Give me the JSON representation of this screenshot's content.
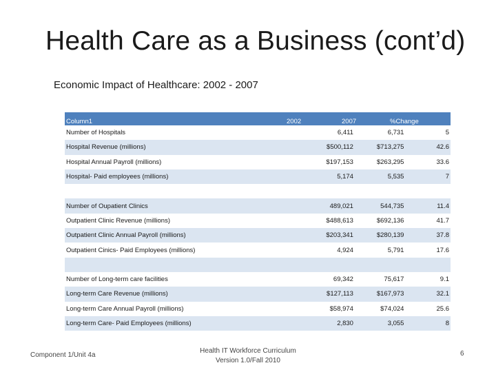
{
  "slide": {
    "title": "Health Care as a Business (cont’d)",
    "subtitle": "Economic Impact of Healthcare:  2002 - 2007"
  },
  "table": {
    "headers": {
      "label": "Column1",
      "y2002": "2002",
      "y2007": "2007",
      "pct": "%Change"
    },
    "rows": [
      {
        "label": "Number of Hospitals",
        "y2002": "6,411",
        "y2007": "6,731",
        "pct": "5"
      },
      {
        "label": "Hospital Revenue (millions)",
        "y2002": "$500,112",
        "y2007": "$713,275",
        "pct": "42.6"
      },
      {
        "label": "Hospital Annual Payroll (millions)",
        "y2002": "$197,153",
        "y2007": "$263,295",
        "pct": "33.6"
      },
      {
        "label": "Hospital- Paid employees (millions)",
        "y2002": "5,174",
        "y2007": "5,535",
        "pct": "7"
      },
      {
        "label": "",
        "y2002": "",
        "y2007": "",
        "pct": ""
      },
      {
        "label": "Number of Oupatient Clinics",
        "y2002": "489,021",
        "y2007": "544,735",
        "pct": "11.4"
      },
      {
        "label": "Outpatient Clinic Revenue (millions)",
        "y2002": "$488,613",
        "y2007": "$692,136",
        "pct": "41.7"
      },
      {
        "label": "Outpatient Clinic Annual Payroll (millions)",
        "y2002": "$203,341",
        "y2007": "$280,139",
        "pct": "37.8"
      },
      {
        "label": "Outpatient Cinics- Paid Employees (millions)",
        "y2002": "4,924",
        "y2007": "5,791",
        "pct": "17.6"
      },
      {
        "label": "",
        "y2002": "",
        "y2007": "",
        "pct": ""
      },
      {
        "label": "Number of Long-term care facilities",
        "y2002": "69,342",
        "y2007": "75,617",
        "pct": "9.1"
      },
      {
        "label": "Long-term Care Revenue (millions)",
        "y2002": "$127,113",
        "y2007": "$167,973",
        "pct": "32.1"
      },
      {
        "label": "Long-term Care Annual Payroll (millions)",
        "y2002": "$58,974",
        "y2007": "$74,024",
        "pct": "25.6"
      },
      {
        "label": "Long-term Care- Paid Employees (millions)",
        "y2002": "2,830",
        "y2007": "3,055",
        "pct": "8"
      }
    ]
  },
  "footer": {
    "left": "Component 1/Unit 4a",
    "center_line1": "Health IT Workforce Curriculum",
    "center_line2": "Version 1.0/Fall 2010",
    "page_number": "6"
  }
}
